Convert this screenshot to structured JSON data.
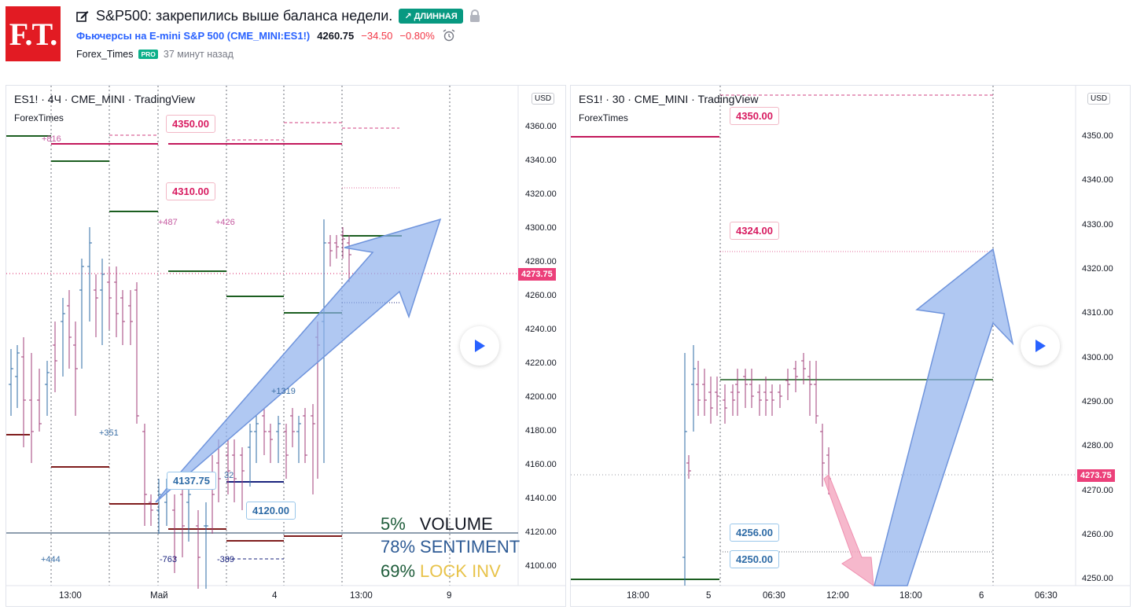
{
  "header": {
    "logo_text": "F.T.",
    "title": "S&P500: закрепились выше баланса недели.",
    "badge_long": "↗ ДЛИННАЯ",
    "symbol_link": "Фьючерсы на E-mini S&P 500 (CME_MINI:ES1!)",
    "price": "4260.75",
    "change": "−34.50",
    "change_pct": "−0.80%",
    "author": "Forex_Times",
    "pro_badge": "PRO",
    "time_ago": "37 минут назад"
  },
  "colors": {
    "accent_red": "#e21b23",
    "long_green": "#089981",
    "link_blue": "#2962ff",
    "neg_red": "#f23645",
    "pink": "#d81b60",
    "pink_tag": "#ec407a",
    "arrow_blue": "#9fb9ef",
    "arrow_pink": "#f4a6bf"
  },
  "left_chart": {
    "title": "ES1! · 4Ч · CME_MINI · TradingView",
    "subtitle": "ForexTimes",
    "currency": "USD",
    "y_labels": [
      "4360.00",
      "4340.00",
      "4320.00",
      "4300.00",
      "4280.00",
      "4260.00",
      "4240.00",
      "4220.00",
      "4200.00",
      "4180.00",
      "4160.00",
      "4140.00",
      "4120.00",
      "4100.00"
    ],
    "x_labels": [
      "13:00",
      "Май",
      "4",
      "13:00",
      "9"
    ],
    "current_price_tag": "4273.75",
    "level_labels": {
      "l4350": "4350.00",
      "l4310": "4310.00",
      "l4137": "4137.75",
      "l4120": "4120.00"
    },
    "small_labels": {
      "p816": "+816",
      "p487": "+487",
      "p426": "+426",
      "p1319": "+1319",
      "p351": "+351",
      "p444": "+444",
      "m763": "-763",
      "m389": "-389",
      "n32": "32"
    },
    "stats": [
      {
        "pct": "5%",
        "label": "VOLUME",
        "pct_color": "#1e5c3a",
        "label_color": "#131722"
      },
      {
        "pct": "78%",
        "label": "SENTIMENT",
        "pct_color": "#2e5b95",
        "label_color": "#2e5b95"
      },
      {
        "pct": "69%",
        "label": "LOCK INV",
        "pct_color": "#1e5c3a",
        "label_color": "#e8c34a"
      }
    ]
  },
  "right_chart": {
    "title": "ES1! · 30 · CME_MINI · TradingView",
    "subtitle": "ForexTimes",
    "currency": "USD",
    "y_labels": [
      "4350.00",
      "4340.00",
      "4330.00",
      "4320.00",
      "4310.00",
      "4300.00",
      "4290.00",
      "4280.00",
      "4270.00",
      "4260.00",
      "4250.00"
    ],
    "x_labels": [
      "18:00",
      "5",
      "06:30",
      "12:00",
      "18:00",
      "6",
      "06:30"
    ],
    "current_price_tag": "4273.75",
    "level_labels": {
      "l4350": "4350.00",
      "l4324": "4324.00",
      "l4256": "4256.00",
      "l4250": "4250.00"
    }
  }
}
